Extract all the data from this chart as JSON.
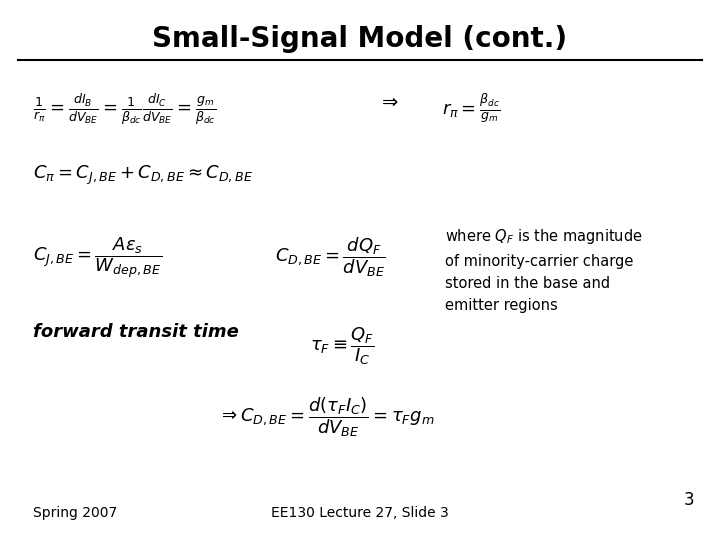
{
  "title": "Small-Signal Model (cont.)",
  "background_color": "#ffffff",
  "text_color": "#000000",
  "title_fontsize": 20,
  "body_fontsize": 13,
  "footer_left": "Spring 2007",
  "footer_center": "EE130 Lecture 27, Slide 3",
  "footer_page": "3",
  "eq1": "$\\frac{1}{r_{\\pi}} = \\frac{dI_B}{dV_{BE}} = \\frac{1}{\\beta_{dc}}\\frac{dI_C}{dV_{BE}} = \\frac{g_m}{\\beta_{dc}}$",
  "eq1b": "$\\Rightarrow$",
  "eq1c": "$r_{\\pi} = \\frac{\\beta_{dc}}{g_m}$",
  "eq2": "$C_{\\pi} = C_{J,BE} + C_{D,BE} \\approx C_{D,BE}$",
  "eq3a": "$C_{J,BE} = \\dfrac{A\\varepsilon_s}{W_{dep,BE}}$",
  "eq3b": "$C_{D,BE} = \\dfrac{dQ_F}{dV_{BE}}$",
  "annotation": "where $Q_F$ is the magnitude\nof minority-carrier charge\nstored in the base and\nemitter regions",
  "eq4_label": "forward transit time",
  "eq4": "$\\tau_F \\equiv \\dfrac{Q_F}{I_C}$",
  "eq5": "$\\Rightarrow C_{D,BE} = \\dfrac{d(\\tau_F I_C)}{dV_{BE}} = \\tau_F g_m$"
}
